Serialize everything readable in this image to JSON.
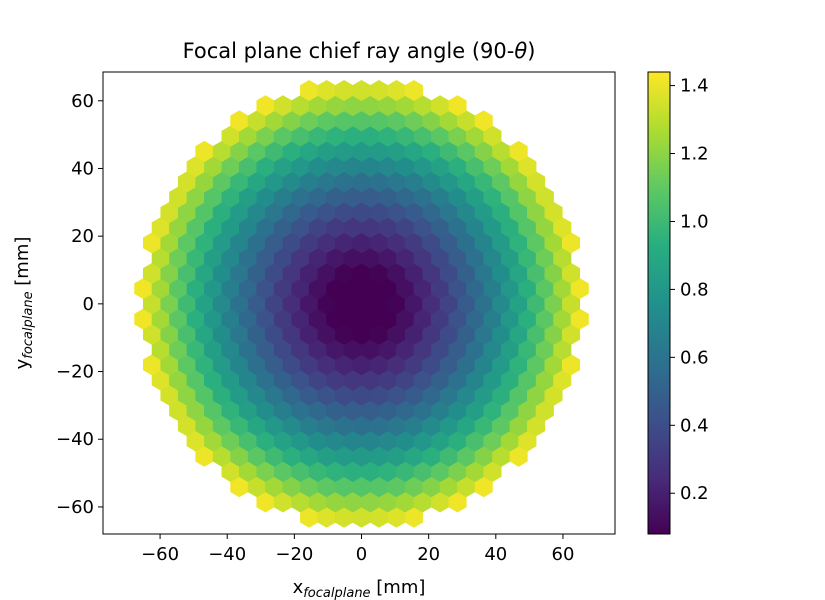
{
  "chart_data": {
    "type": "heatmap",
    "title_main": "Focal plane chief ray angle (90-",
    "title_sym": "θ",
    "title_end": ")",
    "xlabel_base": "x",
    "xlabel_sub": "focalplane",
    "xlabel_unit": " [mm]",
    "ylabel_base": "y",
    "ylabel_sub": "focalplane",
    "ylabel_unit": " [mm]",
    "xlim": [
      -77,
      75.5
    ],
    "ylim": [
      -68,
      68.5
    ],
    "xticks": [
      -60,
      -40,
      -20,
      0,
      20,
      40,
      60
    ],
    "yticks": [
      -60,
      -40,
      -20,
      0,
      20,
      40,
      60
    ],
    "xtick_labels": [
      "−60",
      "−40",
      "−20",
      "0",
      "20",
      "40",
      "60"
    ],
    "ytick_labels": [
      "−60",
      "−40",
      "−20",
      "0",
      "20",
      "40",
      "60"
    ],
    "colorbar": {
      "min": 0.08,
      "max": 1.44,
      "ticks": [
        0.2,
        0.4,
        0.6,
        0.8,
        1.0,
        1.2,
        1.4
      ],
      "tick_labels": [
        "0.2",
        "0.4",
        "0.6",
        "0.8",
        "1.0",
        "1.2",
        "1.4"
      ],
      "colormap": "viridis"
    },
    "hex_grid": {
      "hex_width_mm": 5.2,
      "focal_plane_radius_mm": 66,
      "value_model": "chief_ray_angle_deg = 1.44 * (r / 66)^1.5, r = radial distance in mm"
    },
    "grid": false
  }
}
